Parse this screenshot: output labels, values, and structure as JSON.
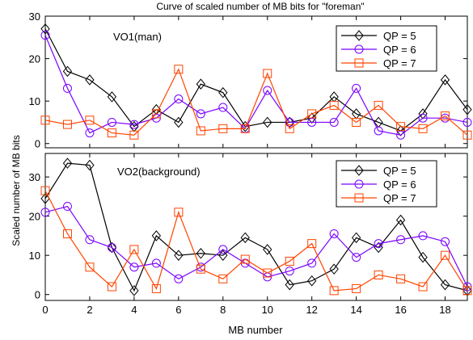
{
  "figure": {
    "title": "Curve of scaled number of MB bits for \"foreman\"",
    "xlabel": "MB number",
    "ylabel": "Scaled number of MB bits"
  },
  "chart_data": [
    {
      "type": "line",
      "annotation": "VO1(man)",
      "x": [
        0,
        1,
        2,
        3,
        4,
        5,
        6,
        7,
        8,
        9,
        10,
        11,
        12,
        13,
        14,
        15,
        16,
        17,
        18,
        19
      ],
      "xlim": [
        0,
        19
      ],
      "ylim": [
        -1,
        30
      ],
      "xticks": [
        0,
        2,
        4,
        6,
        8,
        10,
        12,
        14,
        16,
        18
      ],
      "yticks": [
        0,
        10,
        20,
        30
      ],
      "legend_position": "top-right",
      "series": [
        {
          "name": "QP = 5",
          "color": "#000000",
          "marker": "diamond",
          "values": [
            27,
            17,
            15,
            11,
            4,
            8,
            5,
            14,
            12,
            4,
            5,
            5,
            6,
            11,
            7,
            5,
            3,
            7,
            15,
            8
          ]
        },
        {
          "name": "QP = 6",
          "color": "#7a00ff",
          "marker": "circle",
          "values": [
            25.5,
            13,
            2.5,
            5,
            4.5,
            6,
            10.5,
            7,
            8.5,
            3.5,
            12.5,
            5,
            5,
            5,
            13,
            3,
            2,
            6,
            6,
            5
          ]
        },
        {
          "name": "QP = 7",
          "color": "#ff4400",
          "marker": "square",
          "values": [
            5.5,
            4.5,
            5.5,
            2.5,
            2,
            7,
            17.5,
            3,
            3.5,
            3.5,
            16.5,
            3.5,
            7,
            9,
            5,
            9,
            4,
            3.5,
            6.5,
            2
          ]
        }
      ]
    },
    {
      "type": "line",
      "annotation": "VO2(background)",
      "x": [
        0,
        1,
        2,
        3,
        4,
        5,
        6,
        7,
        8,
        9,
        10,
        11,
        12,
        13,
        14,
        15,
        16,
        17,
        18,
        19
      ],
      "xlim": [
        0,
        19
      ],
      "ylim": [
        -1.5,
        36
      ],
      "xticks": [
        0,
        2,
        4,
        6,
        8,
        10,
        12,
        14,
        16,
        18
      ],
      "xticklabels": [
        "0",
        "2",
        "4",
        "6",
        "8",
        "10",
        "12",
        "14",
        "16",
        "18"
      ],
      "yticks": [
        0,
        10,
        20,
        30
      ],
      "legend_position": "top-right",
      "series": [
        {
          "name": "QP = 5",
          "color": "#000000",
          "marker": "diamond",
          "values": [
            24.5,
            33.5,
            33,
            12,
            1,
            15,
            10,
            10.5,
            10,
            14.5,
            11.5,
            2.5,
            3.5,
            6.5,
            14.5,
            12,
            19,
            9.5,
            2.5,
            1
          ]
        },
        {
          "name": "QP = 6",
          "color": "#7a00ff",
          "marker": "circle",
          "values": [
            21,
            22.5,
            14,
            12,
            7,
            8,
            4,
            7,
            11.5,
            8,
            4.5,
            6,
            8,
            15.5,
            9.5,
            13,
            14,
            15,
            13.5,
            2
          ]
        },
        {
          "name": "QP = 7",
          "color": "#ff4400",
          "marker": "square",
          "values": [
            26.5,
            15.5,
            7,
            2,
            11.5,
            1.5,
            21,
            6.5,
            4,
            9,
            5.5,
            8.5,
            13,
            1,
            1.5,
            5,
            4,
            2,
            10,
            1
          ]
        }
      ]
    }
  ]
}
